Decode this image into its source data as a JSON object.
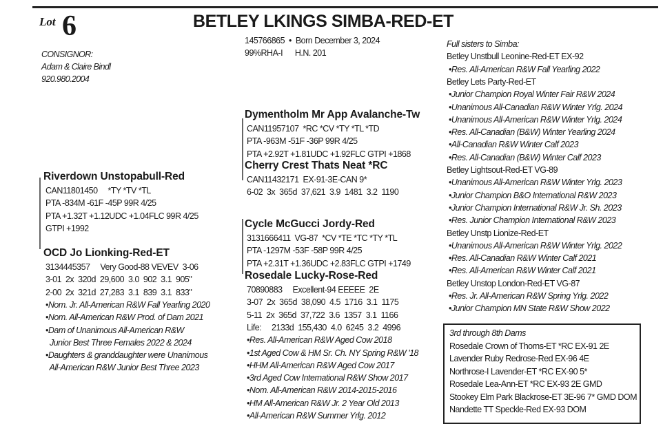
{
  "lot": {
    "label": "Lot",
    "number": "6"
  },
  "title": "BETLEY LKINGS SIMBA-RED-ET",
  "registration": {
    "line1": "145766865  •  Born December 3, 2024",
    "line2": "99%RHA-I      H.N. 201"
  },
  "consignor": {
    "label": "CONSIGNOR:",
    "name": "Adam & Claire Bindl",
    "phone": "920.980.2004"
  },
  "pedigree": {
    "sire": {
      "name": "Dymentholm Mr App Avalanche-Tw",
      "lines": [
        "CAN11957107  *RC *CV *TY *TL *TD",
        "PTA -963M -51F -36P 99R 4/25",
        "PTA +2.92T +1.81UDC +1.92FLC GTPI +1868"
      ],
      "achievements": []
    },
    "sire_dam": {
      "name": "Cherry Crest Thats Neat *RC",
      "lines": [
        "CAN11432171  EX-91-3E-CAN 9*",
        "6-02  3x  365d  37,621  3.9  1481  3.2  1190"
      ],
      "achievements": []
    },
    "dam_sire": {
      "name": "Riverdown Unstopabull-Red",
      "lines": [
        "CAN11801450     *TY *TV *TL",
        "PTA -834M -61F -45P 99R 4/25",
        "PTA +1.32T +1.12UDC +1.04FLC 99R 4/25",
        "GTPI +1992"
      ],
      "achievements": []
    },
    "dam": {
      "name": "OCD Jo Lionking-Red-ET",
      "lines": [
        "3134445357     Very Good-88 VEVEV  3-06",
        "3-01  2x  320d  29,600  3.0  902  3.1  905\"",
        "2-00  2x  321d  27,283  3.1  839  3.1  833\""
      ],
      "achievements": [
        [
          "•Nom. Jr. All-American R&W Fall Yearling 2020"
        ],
        [
          "•Nom. All-American R&W Prod. of Dam 2021"
        ],
        [
          "•Dam of Unanimous All-American R&W",
          "  Junior Best Three Females 2022 & 2024"
        ],
        [
          "•Daughters & granddaughter were Unanimous",
          "  All-American R&W Junior Best Three 2023"
        ]
      ]
    },
    "granddam_sire": {
      "name": "Cycle McGucci Jordy-Red",
      "lines": [
        "3131666411  VG-87  *CV *TE *TC *TY *TL",
        "PTA -1297M -53F -58P 99R 4/25",
        "PTA +2.31T +1.36UDC +2.83FLC GTPI +1749"
      ],
      "achievements": []
    },
    "granddam": {
      "name": "Rosedale Lucky-Rose-Red",
      "lines": [
        "70890883     Excellent-94 EEEEE  2E",
        "3-07  2x  365d  38,090  4.5  1716  3.1  1175",
        "5-11  2x  365d  37,722  3.6  1357  3.1  1166",
        "Life:     2133d  155,430  4.0  6245  3.2  4996"
      ],
      "achievements": [
        [
          "•Res. All-American R&W Aged Cow 2018"
        ],
        [
          "•1st Aged Cow & HM Sr. Ch. NY Spring R&W '18"
        ],
        [
          "•HHM All-American R&W Aged Cow 2017"
        ],
        [
          "•3rd Aged Cow International R&W Show 2017"
        ],
        [
          "•Nom. All-American R&W 2014-2015-2016"
        ],
        [
          "•HM All-American R&W Jr. 2 Year Old 2013"
        ],
        [
          "•All-American R&W Summer Yrlg. 2012"
        ]
      ]
    }
  },
  "full_sisters": {
    "heading": "Full sisters to Simba:",
    "sisters": [
      {
        "name": "Betley Unstbull Leonine-Red-ET EX-92",
        "honors": [
          "•Res. All-American R&W Fall Yearling 2022"
        ]
      },
      {
        "name": "Betley Lets Party-Red-ET",
        "honors": [
          "•Junior Champion Royal Winter Fair R&W 2024",
          "•Unanimous All-Canadian R&W Winter Yrlg. 2024",
          "•Unanimous All-American R&W Winter Yrlg. 2024",
          "•Res. All-Canadian (B&W) Winter Yearling 2024",
          "•All-Canadian R&W Winter Calf 2023",
          "•Res. All-Canadian (B&W) Winter Calf 2023"
        ]
      },
      {
        "name": "Betley Lightsout-Red-ET VG-89",
        "honors": [
          "•Unanimous All-American R&W Winter Yrlg. 2023",
          "•Junior Champion B&O International R&W 2023",
          "•Junior Champion International R&W Jr. Sh. 2023",
          "•Res. Junior Champion International R&W 2023"
        ]
      },
      {
        "name": "Betley Unstp Lionize-Red-ET",
        "honors": [
          "•Unanimous All-American R&W Winter Yrlg. 2022",
          "•Res. All-Canadian R&W Winter Calf 2021",
          "•Res. All-American R&W Winter Calf 2021"
        ]
      },
      {
        "name": "Betley Unstop London-Red-ET VG-87",
        "honors": [
          "•Res. Jr. All-American R&W Spring Yrlg. 2022",
          "•Junior Champion MN State R&W Show 2022"
        ]
      }
    ]
  },
  "dams_box": {
    "heading": "3rd through 8th Dams",
    "dams": [
      "Rosedale Crown of Thorns-ET *RC EX-91 2E",
      "Lavender Ruby Redrose-Red EX-96 4E",
      "Northrose-I Lavender-ET *RC EX-90 5*",
      "Rosedale Lea-Ann-ET *RC EX-93 2E GMD",
      "Stookey Elm Park Blackrose-ET 3E-96 7* GMD DOM",
      "Nandette TT Speckle-Red EX-93 DOM"
    ]
  }
}
